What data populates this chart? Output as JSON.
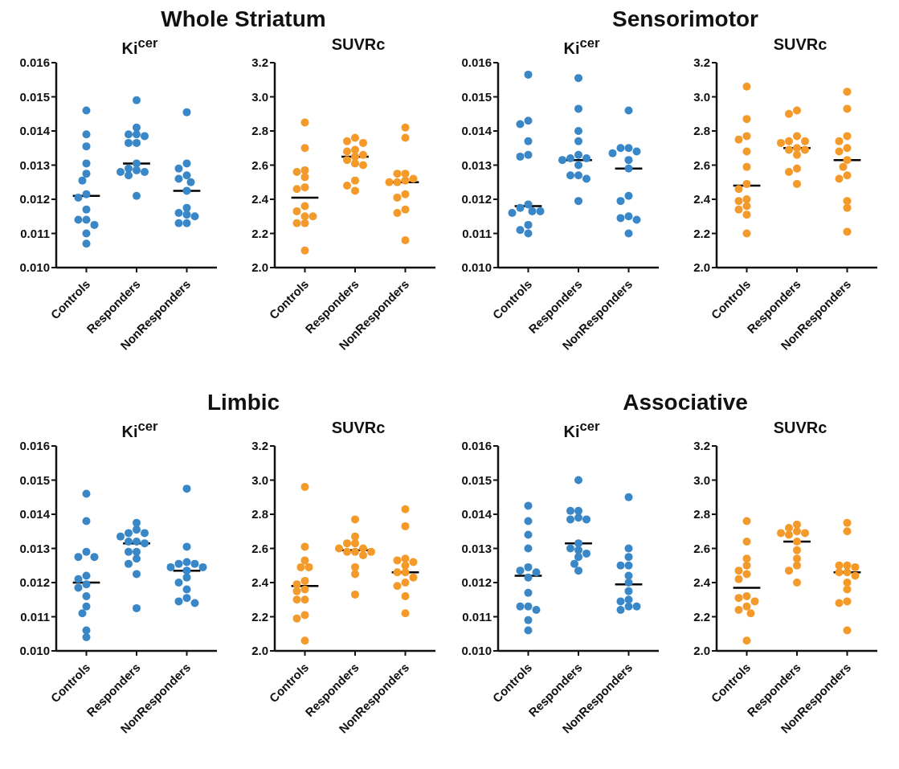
{
  "chart_data": [
    {
      "type": "scatter",
      "title": "Whole Striatum",
      "subtitle": "Ki$^{cer}$",
      "categories": [
        "Controls",
        "Responders",
        "NonResponders"
      ],
      "ylim": [
        0.01,
        0.016
      ],
      "yticks": [
        {
          "value": 0.01,
          "label": "0.010"
        },
        0.011,
        0.012,
        0.013,
        0.014,
        0.015,
        0.016
      ],
      "marker": "circle",
      "series": [
        {
          "color": "#3a87c8",
          "x": [
            "Controls",
            "Controls",
            "Controls",
            "Controls",
            "Controls",
            "Controls",
            "Controls",
            "Controls",
            "Controls",
            "Controls",
            "Controls",
            "Controls",
            "Controls",
            "Controls",
            "Responders",
            "Responders",
            "Responders",
            "Responders",
            "Responders",
            "Responders",
            "Responders",
            "Responders",
            "Responders",
            "Responders",
            "Responders",
            "Responders",
            "Responders",
            "Responders",
            "NonResponders",
            "NonResponders",
            "NonResponders",
            "NonResponders",
            "NonResponders",
            "NonResponders",
            "NonResponders",
            "NonResponders",
            "NonResponders",
            "NonResponders",
            "NonResponders",
            "NonResponders",
            "NonResponders"
          ],
          "values": [
            0.0146,
            0.0139,
            0.01355,
            0.01305,
            0.01275,
            0.01255,
            0.01215,
            0.01205,
            0.0117,
            0.0114,
            0.0114,
            0.01125,
            0.011,
            0.0107,
            0.0149,
            0.0141,
            0.0139,
            0.0139,
            0.01385,
            0.01365,
            0.01365,
            0.01305,
            0.01285,
            0.0128,
            0.0128,
            0.0129,
            0.0127,
            0.0121,
            0.01455,
            0.01305,
            0.0129,
            0.0127,
            0.0125,
            0.0126,
            0.01225,
            0.01155,
            0.0116,
            0.01175,
            0.0115,
            0.0113,
            0.0113
          ]
        }
      ],
      "ref_lines": [
        {
          "axis": "y",
          "value": 0.0121,
          "color": "#000000"
        },
        {
          "axis": "y",
          "value": 0.01305,
          "color": "#000000"
        },
        {
          "axis": "y",
          "value": 0.01225,
          "color": "#000000"
        }
      ]
    },
    {
      "type": "scatter",
      "subtitle": "SUVRc",
      "categories": [
        "Controls",
        "Responders",
        "NonResponders"
      ],
      "ylim": [
        2.0,
        3.2
      ],
      "yticks": [
        {
          "value": 2,
          "label": "2.0"
        },
        2.2,
        2.4,
        2.6,
        2.8,
        {
          "value": 3,
          "label": "3.0"
        },
        3.2
      ],
      "marker": "circle",
      "series": [
        {
          "color": "#f39a2b",
          "x": [
            "Controls",
            "Controls",
            "Controls",
            "Controls",
            "Controls",
            "Controls",
            "Controls",
            "Controls",
            "Controls",
            "Controls",
            "Controls",
            "Controls",
            "Controls",
            "Controls",
            "Responders",
            "Responders",
            "Responders",
            "Responders",
            "Responders",
            "Responders",
            "Responders",
            "Responders",
            "Responders",
            "Responders",
            "Responders",
            "Responders",
            "Responders",
            "NonResponders",
            "NonResponders",
            "NonResponders",
            "NonResponders",
            "NonResponders",
            "NonResponders",
            "NonResponders",
            "NonResponders",
            "NonResponders",
            "NonResponders",
            "NonResponders",
            "NonResponders",
            "NonResponders"
          ],
          "values": [
            2.85,
            2.7,
            2.56,
            2.57,
            2.53,
            2.47,
            2.46,
            2.36,
            2.33,
            2.3,
            2.3,
            2.26,
            2.26,
            2.1,
            2.74,
            2.73,
            2.76,
            2.68,
            2.69,
            2.66,
            2.65,
            2.63,
            2.6,
            2.61,
            2.51,
            2.48,
            2.45,
            2.82,
            2.76,
            2.55,
            2.55,
            2.5,
            2.5,
            2.51,
            2.52,
            2.43,
            2.41,
            2.34,
            2.32,
            2.16
          ]
        }
      ],
      "ref_lines": [
        {
          "axis": "y",
          "value": 2.41,
          "color": "#000000"
        },
        {
          "axis": "y",
          "value": 2.65,
          "color": "#000000"
        },
        {
          "axis": "y",
          "value": 2.5,
          "color": "#000000"
        }
      ]
    },
    {
      "type": "scatter",
      "title": "Sensorimotor",
      "subtitle": "Ki$^{cer}$",
      "categories": [
        "Controls",
        "Responders",
        "NonResponders"
      ],
      "ylim": [
        0.01,
        0.016
      ],
      "yticks": [
        {
          "value": 0.01,
          "label": "0.010"
        },
        0.011,
        0.012,
        0.013,
        0.014,
        0.015,
        0.016
      ],
      "marker": "circle",
      "series": [
        {
          "color": "#3a87c8",
          "x": [
            "Controls",
            "Controls",
            "Controls",
            "Controls",
            "Controls",
            "Controls",
            "Controls",
            "Controls",
            "Controls",
            "Controls",
            "Controls",
            "Controls",
            "Controls",
            "Controls",
            "Responders",
            "Responders",
            "Responders",
            "Responders",
            "Responders",
            "Responders",
            "Responders",
            "Responders",
            "Responders",
            "Responders",
            "Responders",
            "Responders",
            "Responders",
            "NonResponders",
            "NonResponders",
            "NonResponders",
            "NonResponders",
            "NonResponders",
            "NonResponders",
            "NonResponders",
            "NonResponders",
            "NonResponders",
            "NonResponders",
            "NonResponders",
            "NonResponders",
            "NonResponders"
          ],
          "values": [
            0.01565,
            0.0143,
            0.0142,
            0.0137,
            0.01325,
            0.0133,
            0.01185,
            0.01175,
            0.01165,
            0.01165,
            0.0116,
            0.01125,
            0.0111,
            0.011,
            0.01555,
            0.01465,
            0.014,
            0.0137,
            0.0133,
            0.0132,
            0.0132,
            0.013,
            0.01315,
            0.0127,
            0.0127,
            0.0126,
            0.01195,
            0.0146,
            0.0135,
            0.0135,
            0.01335,
            0.0134,
            0.01315,
            0.0129,
            0.0121,
            0.01195,
            0.0115,
            0.0114,
            0.01145,
            0.011
          ]
        }
      ],
      "ref_lines": [
        {
          "axis": "y",
          "value": 0.0118,
          "color": "#000000"
        },
        {
          "axis": "y",
          "value": 0.01315,
          "color": "#000000"
        },
        {
          "axis": "y",
          "value": 0.0129,
          "color": "#000000"
        }
      ]
    },
    {
      "type": "scatter",
      "subtitle": "SUVRc",
      "categories": [
        "Controls",
        "Responders",
        "NonResponders"
      ],
      "ylim": [
        2.0,
        3.2
      ],
      "yticks": [
        {
          "value": 2,
          "label": "2.0"
        },
        2.2,
        2.4,
        2.6,
        2.8,
        {
          "value": 3,
          "label": "3.0"
        },
        3.2
      ],
      "marker": "circle",
      "series": [
        {
          "color": "#f39a2b",
          "x": [
            "Controls",
            "Controls",
            "Controls",
            "Controls",
            "Controls",
            "Controls",
            "Controls",
            "Controls",
            "Controls",
            "Controls",
            "Controls",
            "Controls",
            "Controls",
            "Controls",
            "Responders",
            "Responders",
            "Responders",
            "Responders",
            "Responders",
            "Responders",
            "Responders",
            "Responders",
            "Responders",
            "Responders",
            "Responders",
            "Responders",
            "Responders",
            "NonResponders",
            "NonResponders",
            "NonResponders",
            "NonResponders",
            "NonResponders",
            "NonResponders",
            "NonResponders",
            "NonResponders",
            "NonResponders",
            "NonResponders",
            "NonResponders",
            "NonResponders",
            "NonResponders"
          ],
          "values": [
            3.06,
            2.87,
            2.77,
            2.75,
            2.68,
            2.59,
            2.49,
            2.46,
            2.4,
            2.39,
            2.36,
            2.34,
            2.31,
            2.2,
            2.92,
            2.9,
            2.77,
            2.74,
            2.74,
            2.73,
            2.69,
            2.7,
            2.69,
            2.66,
            2.58,
            2.56,
            2.49,
            3.03,
            2.93,
            2.77,
            2.74,
            2.7,
            2.68,
            2.63,
            2.59,
            2.54,
            2.52,
            2.39,
            2.35,
            2.21
          ]
        }
      ],
      "ref_lines": [
        {
          "axis": "y",
          "value": 2.48,
          "color": "#000000"
        },
        {
          "axis": "y",
          "value": 2.7,
          "color": "#000000"
        },
        {
          "axis": "y",
          "value": 2.63,
          "color": "#000000"
        }
      ]
    },
    {
      "type": "scatter",
      "title": "Limbic",
      "subtitle": "Ki$^{cer}$",
      "categories": [
        "Controls",
        "Responders",
        "NonResponders"
      ],
      "ylim": [
        0.01,
        0.016
      ],
      "yticks": [
        {
          "value": 0.01,
          "label": "0.010"
        },
        0.011,
        0.012,
        0.013,
        0.014,
        0.015,
        0.016
      ],
      "marker": "circle",
      "series": [
        {
          "color": "#3a87c8",
          "x": [
            "Controls",
            "Controls",
            "Controls",
            "Controls",
            "Controls",
            "Controls",
            "Controls",
            "Controls",
            "Controls",
            "Controls",
            "Controls",
            "Controls",
            "Controls",
            "Controls",
            "Responders",
            "Responders",
            "Responders",
            "Responders",
            "Responders",
            "Responders",
            "Responders",
            "Responders",
            "Responders",
            "Responders",
            "Responders",
            "Responders",
            "Responders",
            "Responders",
            "NonResponders",
            "NonResponders",
            "NonResponders",
            "NonResponders",
            "NonResponders",
            "NonResponders",
            "NonResponders",
            "NonResponders",
            "NonResponders",
            "NonResponders",
            "NonResponders",
            "NonResponders",
            "NonResponders",
            "NonResponders"
          ],
          "values": [
            0.0146,
            0.0138,
            0.0129,
            0.01275,
            0.01275,
            0.0122,
            0.01195,
            0.0121,
            0.01185,
            0.0116,
            0.0113,
            0.0111,
            0.0106,
            0.0104,
            0.01375,
            0.01345,
            0.01345,
            0.01355,
            0.0132,
            0.0132,
            0.01335,
            0.01315,
            0.0129,
            0.0129,
            0.0127,
            0.01255,
            0.01225,
            0.01125,
            0.01475,
            0.01305,
            0.0126,
            0.01255,
            0.01255,
            0.01245,
            0.01245,
            0.01235,
            0.01215,
            0.012,
            0.0118,
            0.01155,
            0.01145,
            0.0114
          ]
        }
      ],
      "ref_lines": [
        {
          "axis": "y",
          "value": 0.012,
          "color": "#000000"
        },
        {
          "axis": "y",
          "value": 0.01315,
          "color": "#000000"
        },
        {
          "axis": "y",
          "value": 0.01235,
          "color": "#000000"
        }
      ]
    },
    {
      "type": "scatter",
      "subtitle": "SUVRc",
      "categories": [
        "Controls",
        "Responders",
        "NonResponders"
      ],
      "ylim": [
        2.0,
        3.2
      ],
      "yticks": [
        {
          "value": 2,
          "label": "2.0"
        },
        2.2,
        2.4,
        2.6,
        2.8,
        {
          "value": 3,
          "label": "3.0"
        },
        3.2
      ],
      "marker": "circle",
      "series": [
        {
          "color": "#f39a2b",
          "x": [
            "Controls",
            "Controls",
            "Controls",
            "Controls",
            "Controls",
            "Controls",
            "Controls",
            "Controls",
            "Controls",
            "Controls",
            "Controls",
            "Controls",
            "Controls",
            "Controls",
            "Responders",
            "Responders",
            "Responders",
            "Responders",
            "Responders",
            "Responders",
            "Responders",
            "Responders",
            "Responders",
            "Responders",
            "Responders",
            "Responders",
            "Responders",
            "NonResponders",
            "NonResponders",
            "NonResponders",
            "NonResponders",
            "NonResponders",
            "NonResponders",
            "NonResponders",
            "NonResponders",
            "NonResponders",
            "NonResponders",
            "NonResponders",
            "NonResponders",
            "NonResponders"
          ],
          "values": [
            2.96,
            2.61,
            2.53,
            2.49,
            2.49,
            2.41,
            2.39,
            2.36,
            2.35,
            2.3,
            2.3,
            2.21,
            2.19,
            2.06,
            2.77,
            2.67,
            2.63,
            2.63,
            2.6,
            2.6,
            2.58,
            2.58,
            2.58,
            2.56,
            2.49,
            2.45,
            2.33,
            2.83,
            2.73,
            2.54,
            2.53,
            2.52,
            2.5,
            2.46,
            2.46,
            2.43,
            2.4,
            2.38,
            2.32,
            2.22
          ]
        }
      ],
      "ref_lines": [
        {
          "axis": "y",
          "value": 2.38,
          "color": "#000000"
        },
        {
          "axis": "y",
          "value": 2.59,
          "color": "#000000"
        },
        {
          "axis": "y",
          "value": 2.46,
          "color": "#000000"
        }
      ]
    },
    {
      "type": "scatter",
      "title": "Associative",
      "subtitle": "Ki$^{cer}$",
      "categories": [
        "Controls",
        "Responders",
        "NonResponders"
      ],
      "ylim": [
        0.01,
        0.016
      ],
      "yticks": [
        {
          "value": 0.01,
          "label": "0.010"
        },
        0.011,
        0.012,
        0.013,
        0.014,
        0.015,
        0.016
      ],
      "marker": "circle",
      "series": [
        {
          "color": "#3a87c8",
          "x": [
            "Controls",
            "Controls",
            "Controls",
            "Controls",
            "Controls",
            "Controls",
            "Controls",
            "Controls",
            "Controls",
            "Controls",
            "Controls",
            "Controls",
            "Controls",
            "Controls",
            "Responders",
            "Responders",
            "Responders",
            "Responders",
            "Responders",
            "Responders",
            "Responders",
            "Responders",
            "Responders",
            "Responders",
            "Responders",
            "Responders",
            "Responders",
            "NonResponders",
            "NonResponders",
            "NonResponders",
            "NonResponders",
            "NonResponders",
            "NonResponders",
            "NonResponders",
            "NonResponders",
            "NonResponders",
            "NonResponders",
            "NonResponders",
            "NonResponders",
            "NonResponders"
          ],
          "values": [
            0.01425,
            0.0138,
            0.0134,
            0.013,
            0.01245,
            0.01235,
            0.0123,
            0.01215,
            0.0117,
            0.0113,
            0.0113,
            0.0112,
            0.0109,
            0.0106,
            0.015,
            0.0141,
            0.0141,
            0.01385,
            0.01385,
            0.0139,
            0.01315,
            0.01295,
            0.013,
            0.01285,
            0.01275,
            0.01255,
            0.01235,
            0.0145,
            0.013,
            0.01275,
            0.0125,
            0.0125,
            0.0122,
            0.012,
            0.01175,
            0.01145,
            0.0115,
            0.0113,
            0.0112,
            0.0113
          ]
        }
      ],
      "ref_lines": [
        {
          "axis": "y",
          "value": 0.0122,
          "color": "#000000"
        },
        {
          "axis": "y",
          "value": 0.01315,
          "color": "#000000"
        },
        {
          "axis": "y",
          "value": 0.01195,
          "color": "#000000"
        }
      ]
    },
    {
      "type": "scatter",
      "subtitle": "SUVRc",
      "categories": [
        "Controls",
        "Responders",
        "NonResponders"
      ],
      "ylim": [
        2.0,
        3.2
      ],
      "yticks": [
        {
          "value": 2,
          "label": "2.0"
        },
        2.2,
        2.4,
        2.6,
        2.8,
        {
          "value": 3,
          "label": "3.0"
        },
        3.2
      ],
      "marker": "circle",
      "series": [
        {
          "color": "#f39a2b",
          "x": [
            "Controls",
            "Controls",
            "Controls",
            "Controls",
            "Controls",
            "Controls",
            "Controls",
            "Controls",
            "Controls",
            "Controls",
            "Controls",
            "Controls",
            "Controls",
            "Controls",
            "Responders",
            "Responders",
            "Responders",
            "Responders",
            "Responders",
            "Responders",
            "Responders",
            "Responders",
            "Responders",
            "Responders",
            "Responders",
            "Responders",
            "NonResponders",
            "NonResponders",
            "NonResponders",
            "NonResponders",
            "NonResponders",
            "NonResponders",
            "NonResponders",
            "NonResponders",
            "NonResponders",
            "NonResponders",
            "NonResponders",
            "NonResponders",
            "NonResponders"
          ],
          "values": [
            2.76,
            2.64,
            2.54,
            2.5,
            2.47,
            2.45,
            2.42,
            2.32,
            2.31,
            2.29,
            2.26,
            2.24,
            2.22,
            2.06,
            2.74,
            2.72,
            2.7,
            2.69,
            2.69,
            2.68,
            2.64,
            2.59,
            2.54,
            2.5,
            2.47,
            2.4,
            2.75,
            2.7,
            2.5,
            2.5,
            2.49,
            2.46,
            2.46,
            2.44,
            2.4,
            2.36,
            2.29,
            2.28,
            2.12
          ]
        }
      ],
      "ref_lines": [
        {
          "axis": "y",
          "value": 2.37,
          "color": "#000000"
        },
        {
          "axis": "y",
          "value": 2.64,
          "color": "#000000"
        },
        {
          "axis": "y",
          "value": 2.46,
          "color": "#000000"
        }
      ]
    }
  ]
}
